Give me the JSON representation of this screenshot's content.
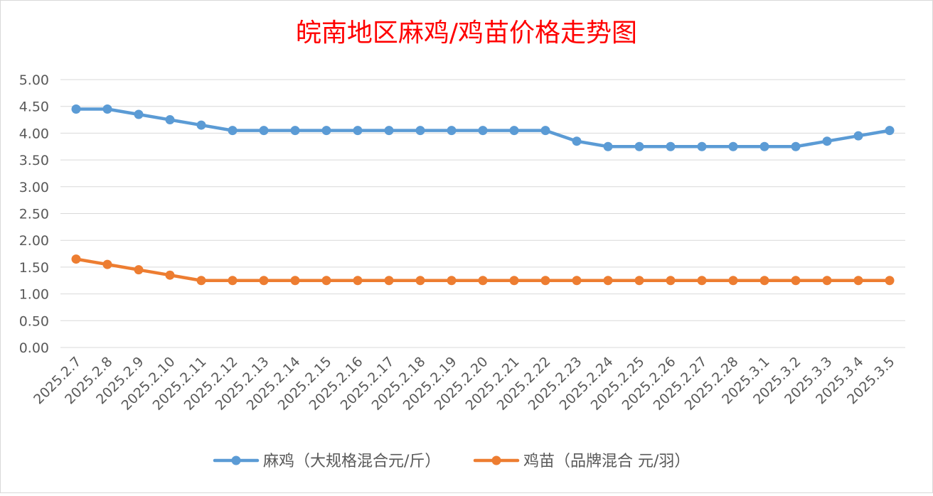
{
  "chart_data": {
    "type": "line",
    "title": "皖南地区麻鸡/鸡苗价格走势图",
    "xlabel": "",
    "ylabel": "",
    "ylim": [
      0,
      5
    ],
    "ytick_step": 0.5,
    "grid": true,
    "legend_position": "bottom",
    "categories": [
      "2025.2.7",
      "2025.2.8",
      "2025.2.9",
      "2025.2.10",
      "2025.2.11",
      "2025.2.12",
      "2025.2.13",
      "2025.2.14",
      "2025.2.15",
      "2025.2.16",
      "2025.2.17",
      "2025.2.18",
      "2025.2.19",
      "2025.2.20",
      "2025.2.21",
      "2025.2.22",
      "2025.2.23",
      "2025.2.24",
      "2025.2.25",
      "2025.2.26",
      "2025.2.27",
      "2025.2.28",
      "2025.3.1",
      "2025.3.2",
      "2025.3.3",
      "2025.3.4",
      "2025.3.5"
    ],
    "yticks": [
      "0.00",
      "0.50",
      "1.00",
      "1.50",
      "2.00",
      "2.50",
      "3.00",
      "3.50",
      "4.00",
      "4.50",
      "5.00"
    ],
    "series": [
      {
        "name": "麻鸡（大规格混合元/斤）",
        "color": "#5B9BD5",
        "values": [
          4.45,
          4.45,
          4.35,
          4.25,
          4.15,
          4.05,
          4.05,
          4.05,
          4.05,
          4.05,
          4.05,
          4.05,
          4.05,
          4.05,
          4.05,
          4.05,
          3.85,
          3.75,
          3.75,
          3.75,
          3.75,
          3.75,
          3.75,
          3.75,
          3.85,
          3.95,
          4.05
        ]
      },
      {
        "name": "鸡苗（品牌混合 元/羽）",
        "color": "#ED7D31",
        "values": [
          1.65,
          1.55,
          1.45,
          1.35,
          1.25,
          1.25,
          1.25,
          1.25,
          1.25,
          1.25,
          1.25,
          1.25,
          1.25,
          1.25,
          1.25,
          1.25,
          1.25,
          1.25,
          1.25,
          1.25,
          1.25,
          1.25,
          1.25,
          1.25,
          1.25,
          1.25,
          1.25
        ]
      }
    ],
    "colors": {
      "title": "#FF0000",
      "grid": "#D9D9D9",
      "axis_text": "#595959"
    }
  }
}
